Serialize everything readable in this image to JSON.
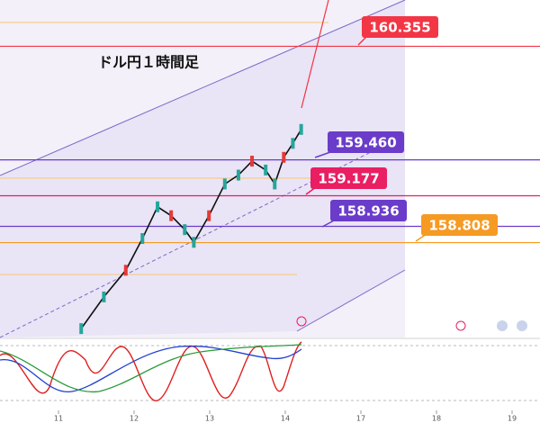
{
  "chart_data": {
    "type": "line",
    "title": "ドル円１時間足",
    "x": [
      0.3,
      0.6,
      0.89,
      1.11,
      1.31,
      1.49,
      1.67,
      1.79,
      1.99,
      2.2,
      2.38,
      2.56,
      2.74,
      2.86,
      2.98,
      3.1,
      3.21
    ],
    "series": [
      {
        "color": "#111111",
        "values": [
          158.13,
          158.38,
          158.59,
          158.84,
          159.09,
          159.02,
          158.91,
          158.81,
          159.02,
          159.27,
          159.34,
          159.45,
          159.38,
          159.27,
          159.48,
          159.59,
          159.7
        ]
      }
    ],
    "xlim": [
      -0.774,
      6.369
    ],
    "xticks": [
      {
        "value": 0,
        "label": "11"
      },
      {
        "value": 1,
        "label": "12"
      },
      {
        "value": 2,
        "label": "13"
      },
      {
        "value": 3,
        "label": "14"
      },
      {
        "value": 4,
        "label": "17"
      },
      {
        "value": 5,
        "label": "18"
      },
      {
        "value": 6,
        "label": "19"
      }
    ],
    "ylim": [
      158.06,
      160.72
    ],
    "levels": [
      {
        "value": 160.355,
        "color": "#f23645"
      },
      {
        "value": 159.46,
        "label": "159.460",
        "color": "#6a3cc9"
      },
      {
        "value": 159.177,
        "color": "#e91e63"
      },
      {
        "value": 158.936,
        "color": "#6a3cc9"
      },
      {
        "value": 158.808,
        "color": "#f59a23"
      }
    ]
  }
}
